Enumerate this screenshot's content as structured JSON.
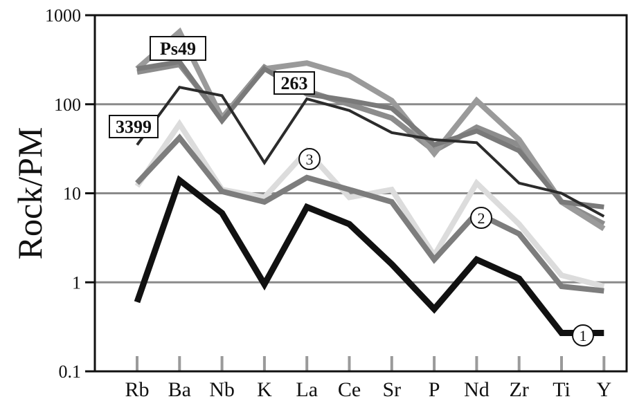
{
  "chart_data": {
    "type": "line",
    "title": "",
    "xlabel": "",
    "ylabel": "Rock/PM",
    "yscale": "log",
    "ylim": [
      0.1,
      1000
    ],
    "yticks": [
      "0.1",
      "1",
      "10",
      "100",
      "1000"
    ],
    "categories": [
      "Rb",
      "Ba",
      "Nb",
      "K",
      "La",
      "Ce",
      "Sr",
      "P",
      "Nd",
      "Zr",
      "Ti",
      "Y"
    ],
    "grid": "horizontal major lines",
    "series": [
      {
        "label": "Ps49",
        "color": "#8c8c8c",
        "values": [
          230,
          280,
          70,
          260,
          140,
          100,
          70,
          30,
          55,
          35,
          8,
          4.5
        ]
      },
      {
        "label": "Ps49",
        "color": "#9a9a9a",
        "values": [
          250,
          650,
          70,
          250,
          290,
          210,
          110,
          28,
          110,
          40,
          8,
          4
        ]
      },
      {
        "label": "263",
        "color": "#7a7a7a",
        "values": [
          250,
          300,
          65,
          250,
          130,
          110,
          90,
          35,
          50,
          30,
          8,
          7
        ]
      },
      {
        "label": "3399",
        "color": "#2b2b2b",
        "values": [
          35,
          155,
          125,
          22,
          115,
          85,
          48,
          40,
          37,
          13,
          10,
          5.5
        ]
      },
      {
        "label": "3",
        "color": "#dcdcdc",
        "values": [
          12,
          60,
          11,
          9,
          30,
          9,
          11,
          2,
          13,
          4.5,
          1.2,
          0.9
        ]
      },
      {
        "label": "2",
        "color": "#7d7d7d",
        "values": [
          13,
          42,
          10.5,
          8,
          15,
          11,
          8,
          1.8,
          6,
          3.5,
          0.9,
          0.8
        ]
      },
      {
        "label": "1",
        "color": "#111111",
        "values": [
          0.6,
          14,
          6,
          0.95,
          7,
          4.5,
          1.6,
          0.5,
          1.8,
          1.1,
          0.27,
          0.27
        ]
      }
    ]
  }
}
